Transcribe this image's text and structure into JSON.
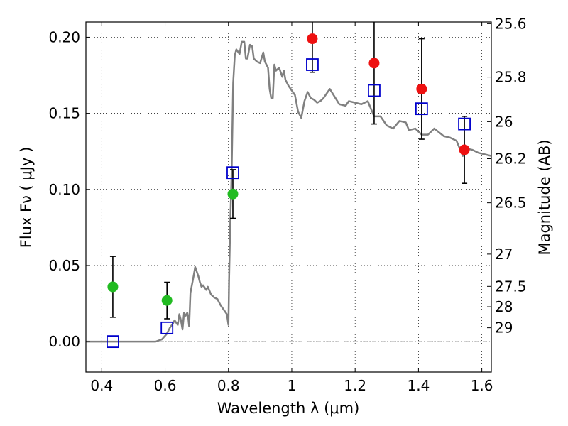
{
  "chart_data": {
    "type": "scatter",
    "xlabel": "Wavelength  λ (μm)",
    "ylabel": "Flux  Fν  ( μJy )",
    "y2label": "Magnitude (AB)",
    "xlim": [
      0.35,
      1.63
    ],
    "ylim": [
      -0.02,
      0.21
    ],
    "grid": true,
    "x_ticks": [
      0.4,
      0.6,
      0.8,
      1.0,
      1.2,
      1.4,
      1.6
    ],
    "x_tick_labels": [
      "0.4",
      "0.6",
      "0.8",
      "1",
      "1.2",
      "1.4",
      "1.6"
    ],
    "y_ticks": [
      0.0,
      0.05,
      0.1,
      0.15,
      0.2
    ],
    "y_tick_labels": [
      "0.00",
      "0.05",
      "0.10",
      "0.15",
      "0.20"
    ],
    "mag_ticks": [
      {
        "label": "25.6",
        "flux": 0.2089
      },
      {
        "label": "25.8",
        "flux": 0.1738
      },
      {
        "label": "26",
        "flux": 0.1445
      },
      {
        "label": "26.2",
        "flux": 0.1202
      },
      {
        "label": "26.5",
        "flux": 0.0912
      },
      {
        "label": "27",
        "flux": 0.0575
      },
      {
        "label": "27.5",
        "flux": 0.0363
      },
      {
        "label": "28",
        "flux": 0.0229
      },
      {
        "label": "29",
        "flux": 0.0091
      }
    ],
    "colors": {
      "model": "#808080",
      "green": "#22bb22",
      "red": "#ee1111",
      "blue": "#0000cc",
      "zero_line": "#888888"
    },
    "model_spectrum": [
      [
        0.35,
        0.0
      ],
      [
        0.57,
        0.0
      ],
      [
        0.59,
        0.0015
      ],
      [
        0.605,
        0.005
      ],
      [
        0.615,
        0.009
      ],
      [
        0.625,
        0.012
      ],
      [
        0.63,
        0.014
      ],
      [
        0.64,
        0.011
      ],
      [
        0.645,
        0.018
      ],
      [
        0.65,
        0.014
      ],
      [
        0.655,
        0.008
      ],
      [
        0.66,
        0.019
      ],
      [
        0.665,
        0.017
      ],
      [
        0.67,
        0.019
      ],
      [
        0.673,
        0.016
      ],
      [
        0.676,
        0.01
      ],
      [
        0.68,
        0.032
      ],
      [
        0.69,
        0.043
      ],
      [
        0.695,
        0.049
      ],
      [
        0.705,
        0.043
      ],
      [
        0.71,
        0.039
      ],
      [
        0.715,
        0.036
      ],
      [
        0.72,
        0.037
      ],
      [
        0.73,
        0.034
      ],
      [
        0.735,
        0.036
      ],
      [
        0.745,
        0.031
      ],
      [
        0.755,
        0.029
      ],
      [
        0.765,
        0.028
      ],
      [
        0.775,
        0.024
      ],
      [
        0.785,
        0.021
      ],
      [
        0.795,
        0.018
      ],
      [
        0.8,
        0.011
      ],
      [
        0.802,
        0.04
      ],
      [
        0.806,
        0.08
      ],
      [
        0.81,
        0.11
      ],
      [
        0.815,
        0.17
      ],
      [
        0.82,
        0.188
      ],
      [
        0.825,
        0.192
      ],
      [
        0.835,
        0.189
      ],
      [
        0.842,
        0.197
      ],
      [
        0.85,
        0.197
      ],
      [
        0.855,
        0.186
      ],
      [
        0.86,
        0.186
      ],
      [
        0.868,
        0.195
      ],
      [
        0.875,
        0.194
      ],
      [
        0.88,
        0.186
      ],
      [
        0.89,
        0.184
      ],
      [
        0.9,
        0.183
      ],
      [
        0.91,
        0.19
      ],
      [
        0.915,
        0.184
      ],
      [
        0.925,
        0.18
      ],
      [
        0.93,
        0.166
      ],
      [
        0.935,
        0.16
      ],
      [
        0.94,
        0.16
      ],
      [
        0.945,
        0.182
      ],
      [
        0.95,
        0.178
      ],
      [
        0.96,
        0.18
      ],
      [
        0.97,
        0.174
      ],
      [
        0.975,
        0.178
      ],
      [
        0.98,
        0.172
      ],
      [
        0.99,
        0.168
      ],
      [
        1.0,
        0.165
      ],
      [
        1.01,
        0.162
      ],
      [
        1.02,
        0.151
      ],
      [
        1.03,
        0.147
      ],
      [
        1.04,
        0.158
      ],
      [
        1.05,
        0.164
      ],
      [
        1.06,
        0.16
      ],
      [
        1.07,
        0.159
      ],
      [
        1.08,
        0.157
      ],
      [
        1.09,
        0.158
      ],
      [
        1.1,
        0.16
      ],
      [
        1.12,
        0.166
      ],
      [
        1.15,
        0.156
      ],
      [
        1.17,
        0.155
      ],
      [
        1.18,
        0.158
      ],
      [
        1.2,
        0.157
      ],
      [
        1.22,
        0.156
      ],
      [
        1.24,
        0.158
      ],
      [
        1.26,
        0.148
      ],
      [
        1.28,
        0.148
      ],
      [
        1.3,
        0.142
      ],
      [
        1.32,
        0.14
      ],
      [
        1.34,
        0.145
      ],
      [
        1.36,
        0.144
      ],
      [
        1.37,
        0.139
      ],
      [
        1.39,
        0.14
      ],
      [
        1.41,
        0.136
      ],
      [
        1.43,
        0.136
      ],
      [
        1.45,
        0.14
      ],
      [
        1.48,
        0.135
      ],
      [
        1.5,
        0.134
      ],
      [
        1.52,
        0.132
      ],
      [
        1.54,
        0.122
      ],
      [
        1.55,
        0.127
      ],
      [
        1.57,
        0.126
      ],
      [
        1.59,
        0.124
      ],
      [
        1.63,
        0.122
      ]
    ],
    "green_points": [
      {
        "x": 0.435,
        "y": 0.036,
        "err": 0.02
      },
      {
        "x": 0.606,
        "y": 0.027,
        "err": 0.012
      },
      {
        "x": 0.814,
        "y": 0.097,
        "err": 0.016
      }
    ],
    "red_points": [
      {
        "x": 1.065,
        "y": 0.199,
        "err": 0.022
      },
      {
        "x": 1.26,
        "y": 0.183,
        "err": 0.04
      },
      {
        "x": 1.41,
        "y": 0.166,
        "err": 0.033
      },
      {
        "x": 1.545,
        "y": 0.126,
        "err": 0.022
      }
    ],
    "model_points": [
      {
        "x": 0.435,
        "y": 0.0
      },
      {
        "x": 0.606,
        "y": 0.009
      },
      {
        "x": 0.814,
        "y": 0.111
      },
      {
        "x": 1.065,
        "y": 0.182
      },
      {
        "x": 1.26,
        "y": 0.165
      },
      {
        "x": 1.41,
        "y": 0.153
      },
      {
        "x": 1.545,
        "y": 0.143
      }
    ]
  }
}
